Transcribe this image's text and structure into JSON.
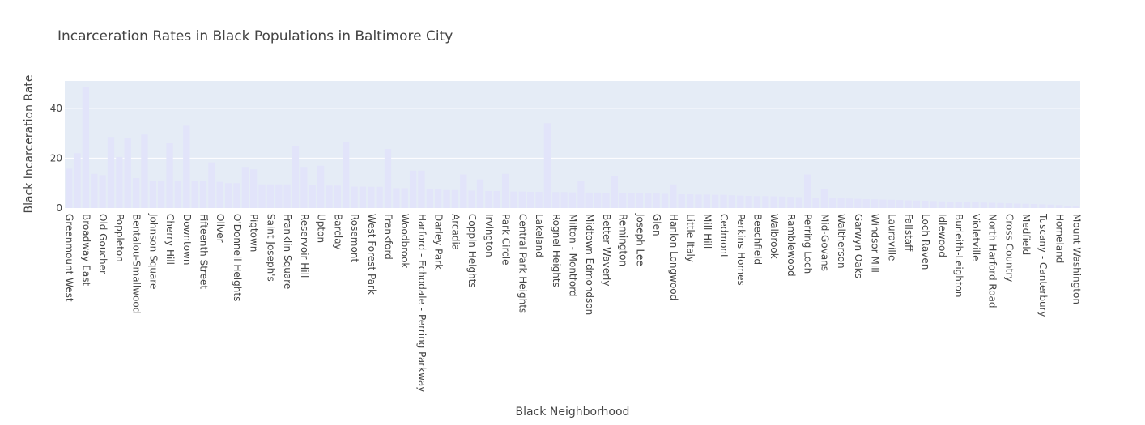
{
  "chart_data": {
    "type": "bar",
    "title": "Incarceration Rates in Black Populations in Baltimore City",
    "xlabel": "Black Neighborhood",
    "ylabel": "Black Incarceration Rate",
    "ylim": [
      0,
      51
    ],
    "yticks": [
      0,
      20,
      40
    ],
    "grid": true,
    "bar_color": "#e2e4fa",
    "plot_bg": "#e5ecf6",
    "categories": [
      "Greenmount West",
      "",
      "Broadway East",
      "",
      "Old Goucher",
      "",
      "Poppleton",
      "",
      "Bentalou-Smallwood",
      "",
      "Johnson Square",
      "",
      "Cherry Hill",
      "",
      "Downtown",
      "",
      "Fifteenth Street",
      "",
      "Oliver",
      "",
      "O'Donnell Heights",
      "",
      "Pigtown",
      "",
      "Saint Joseph's",
      "",
      "Franklin Square",
      "",
      "Reservoir Hill",
      "",
      "Upton",
      "",
      "Barclay",
      "",
      "Rosemont",
      "",
      "West Forest Park",
      "",
      "Frankford",
      "",
      "Woodbrook",
      "",
      "Harford - Echodale - Perring Parkway",
      "",
      "Darley Park",
      "",
      "Arcadia",
      "",
      "Coppin Heights",
      "",
      "Irvington",
      "",
      "Park Circle",
      "",
      "Central Park Heights",
      "",
      "Lakeland",
      "",
      "Rognel Heights",
      "",
      "Milton - Montford",
      "",
      "Midtown Edmondson",
      "",
      "Better Waverly",
      "",
      "Remington",
      "",
      "Joseph Lee",
      "",
      "Glen",
      "",
      "Hanlon Longwood",
      "",
      "Little Italy",
      "",
      "Mill Hill",
      "",
      "Cedmont",
      "",
      "Perkins Homes",
      "",
      "Beechfield",
      "",
      "Walbrook",
      "",
      "Ramblewood",
      "",
      "Perring Loch",
      "",
      "Mid-Govans",
      "",
      "Waltherson",
      "",
      "Garwyn Oaks",
      "",
      "Windsor Mill",
      "",
      "Lauraville",
      "",
      "Fallstaff",
      "",
      "Loch Raven",
      "",
      "Idlewood",
      "",
      "Burleith-Leighton",
      "",
      "Violetville",
      "",
      "North Harford Road",
      "",
      "Cross Country",
      "",
      "Medfield",
      "",
      "Tuscany - Canterbury",
      "",
      "Homeland",
      "",
      "Mount Washington"
    ],
    "values": [
      15.8,
      22,
      48.5,
      13.7,
      13.2,
      28.5,
      20.5,
      28,
      12,
      29.5,
      11,
      11,
      26,
      11,
      33,
      10.7,
      10.7,
      18.3,
      10.5,
      10,
      10,
      16.5,
      15.5,
      9.5,
      9.5,
      9.5,
      9.5,
      25,
      16.5,
      9.3,
      17,
      9,
      9,
      26.5,
      8.6,
      8.6,
      8.5,
      8.5,
      23.7,
      8,
      8,
      15,
      15,
      7.5,
      7.5,
      7.2,
      7.2,
      13.5,
      7,
      11.5,
      6.8,
      6.8,
      13.7,
      6.6,
      6.6,
      6.5,
      6.5,
      34,
      6.4,
      6.4,
      6.3,
      11,
      6.2,
      6.2,
      6.1,
      13,
      6,
      6,
      6,
      5.8,
      5.8,
      5.7,
      9.5,
      5.5,
      5.5,
      5.4,
      5.4,
      5.3,
      5.3,
      5.1,
      5,
      4.9,
      4.8,
      4.8,
      4.7,
      4.6,
      4.5,
      4.4,
      13.5,
      4.2,
      7.5,
      4.1,
      4,
      3.8,
      3.7,
      3.6,
      3.5,
      3.4,
      3.3,
      3.2,
      3.1,
      3.0,
      2.9,
      2.8,
      2.7,
      2.6,
      2.5,
      2.4,
      2.3,
      2.2,
      2.1,
      2.0,
      1.9,
      1.8,
      1.7,
      1.6,
      1.5,
      1.4,
      1.2,
      1.0,
      0.8
    ]
  }
}
